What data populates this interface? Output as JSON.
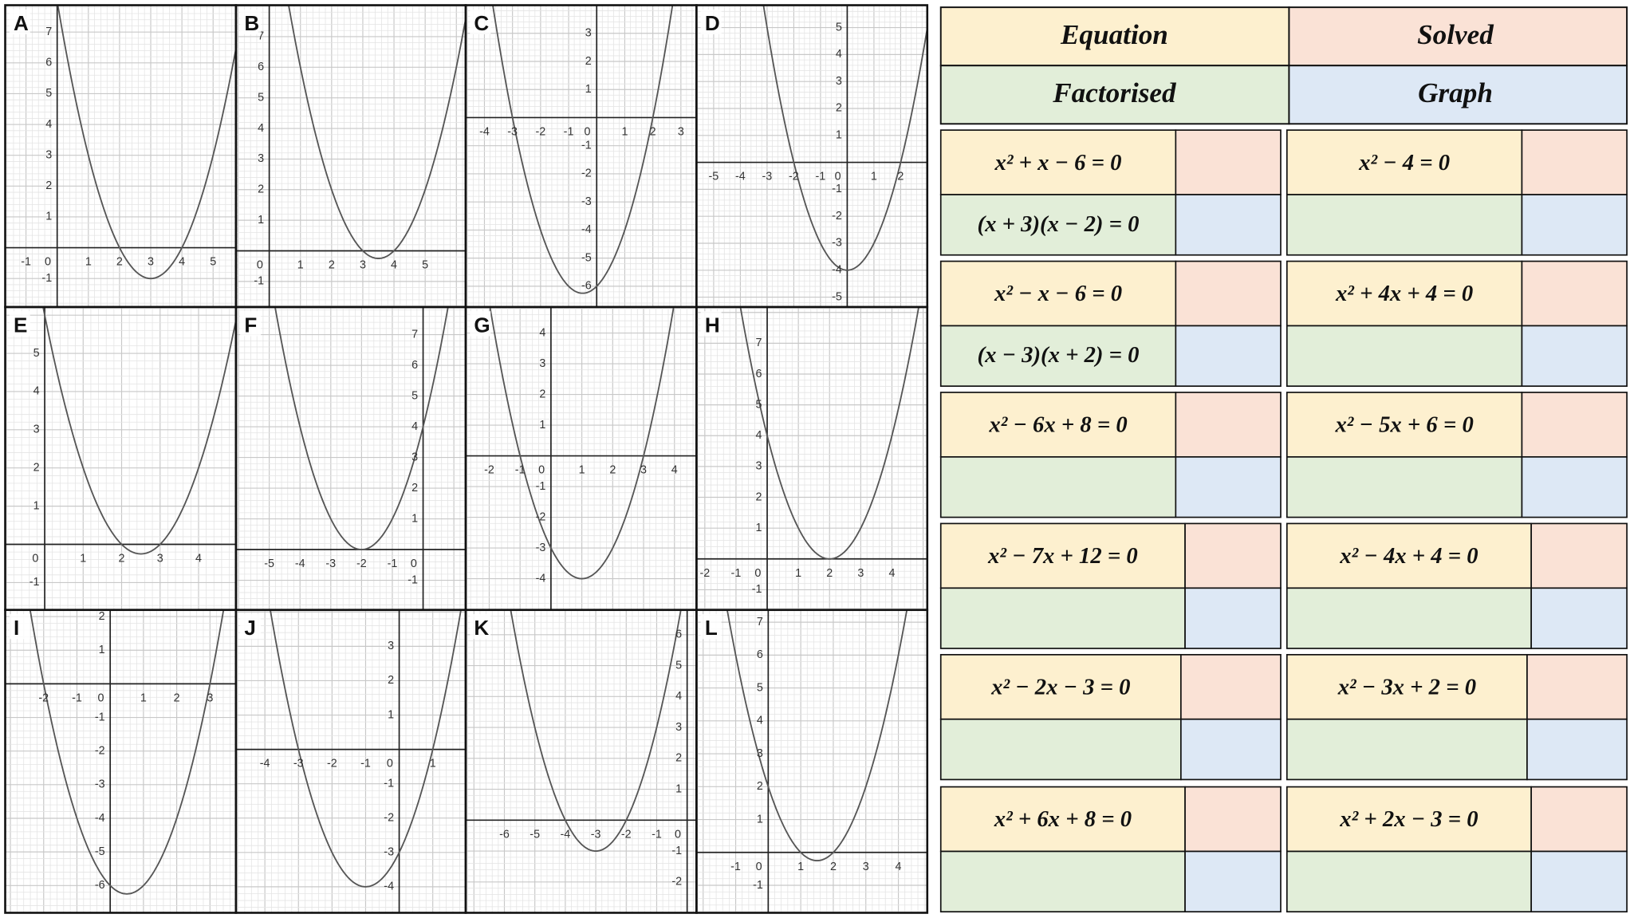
{
  "graphs": [
    {
      "label": "A",
      "x_ticks": [
        -1,
        0,
        1,
        2,
        3,
        4,
        5
      ],
      "y_ticks": [
        -1,
        1,
        2,
        3,
        4,
        5,
        6,
        7
      ]
    },
    {
      "label": "B",
      "x_ticks": [
        0,
        1,
        2,
        3,
        4,
        5
      ],
      "y_ticks": [
        -1,
        1,
        2,
        3,
        4,
        5,
        6,
        7
      ]
    },
    {
      "label": "C",
      "x_ticks": [
        -4,
        -3,
        -2,
        -1,
        0,
        1,
        2,
        3
      ],
      "y_ticks": [
        -6,
        -5,
        -4,
        -3,
        -2,
        -1,
        1,
        2,
        3
      ]
    },
    {
      "label": "D",
      "x_ticks": [
        -5,
        -4,
        -3,
        -2,
        -1,
        0,
        1,
        2
      ],
      "y_ticks": [
        -5,
        -4,
        -3,
        -2,
        -1,
        1,
        2,
        3,
        4,
        5
      ]
    },
    {
      "label": "E",
      "x_ticks": [
        0,
        1,
        2,
        3,
        4
      ],
      "y_ticks": [
        -1,
        1,
        2,
        3,
        4,
        5
      ]
    },
    {
      "label": "F",
      "x_ticks": [
        -5,
        -4,
        -3,
        -2,
        -1,
        0
      ],
      "y_ticks": [
        -1,
        1,
        2,
        3,
        4,
        5,
        6,
        7
      ]
    },
    {
      "label": "G",
      "x_ticks": [
        -2,
        -1,
        0,
        1,
        2,
        3,
        4
      ],
      "y_ticks": [
        -4,
        -3,
        -2,
        -1,
        1,
        2,
        3,
        4
      ]
    },
    {
      "label": "H",
      "x_ticks": [
        -2,
        -1,
        0,
        1,
        2,
        3,
        4
      ],
      "y_ticks": [
        -1,
        1,
        2,
        3,
        4,
        5,
        6,
        7
      ]
    },
    {
      "label": "I",
      "x_ticks": [
        -2,
        -1,
        0,
        1,
        2,
        3
      ],
      "y_ticks": [
        -6,
        -5,
        -4,
        -3,
        -2,
        -1,
        1,
        2
      ]
    },
    {
      "label": "J",
      "x_ticks": [
        -4,
        -3,
        -2,
        -1,
        0,
        1
      ],
      "y_ticks": [
        -4,
        -3,
        -2,
        -1,
        1,
        2,
        3
      ]
    },
    {
      "label": "K",
      "x_ticks": [
        -6,
        -5,
        -4,
        -3,
        -2,
        -1,
        0
      ],
      "y_ticks": [
        -2,
        -1,
        1,
        2,
        3,
        4,
        5,
        6
      ]
    },
    {
      "label": "L",
      "x_ticks": [
        -1,
        0,
        1,
        2,
        3,
        4
      ],
      "y_ticks": [
        -1,
        1,
        2,
        3,
        4,
        5,
        6,
        7
      ]
    }
  ],
  "key": {
    "equation": "Equation",
    "solved": "Solved",
    "factorised": "Factorised",
    "graph": "Graph"
  },
  "cards": [
    {
      "equation": "x² + x − 6 = 0",
      "factorised": "(x + 3)(x − 2) = 0"
    },
    {
      "equation": "x² − 4 = 0"
    },
    {
      "equation": "x² − x − 6 = 0",
      "factorised": "(x − 3)(x + 2) = 0"
    },
    {
      "equation": "x² + 4x + 4 = 0"
    },
    {
      "equation": "x² − 6x + 8 = 0"
    },
    {
      "equation": "x² − 5x + 6 = 0"
    },
    {
      "equation": "x² − 7x + 12 = 0"
    },
    {
      "equation": "x² − 4x + 4 = 0"
    },
    {
      "equation": "x² − 2x − 3 = 0"
    },
    {
      "equation": "x² − 3x + 2 = 0"
    },
    {
      "equation": "x² + 6x + 8 = 0"
    },
    {
      "equation": "x² + 2x − 3 = 0"
    }
  ]
}
